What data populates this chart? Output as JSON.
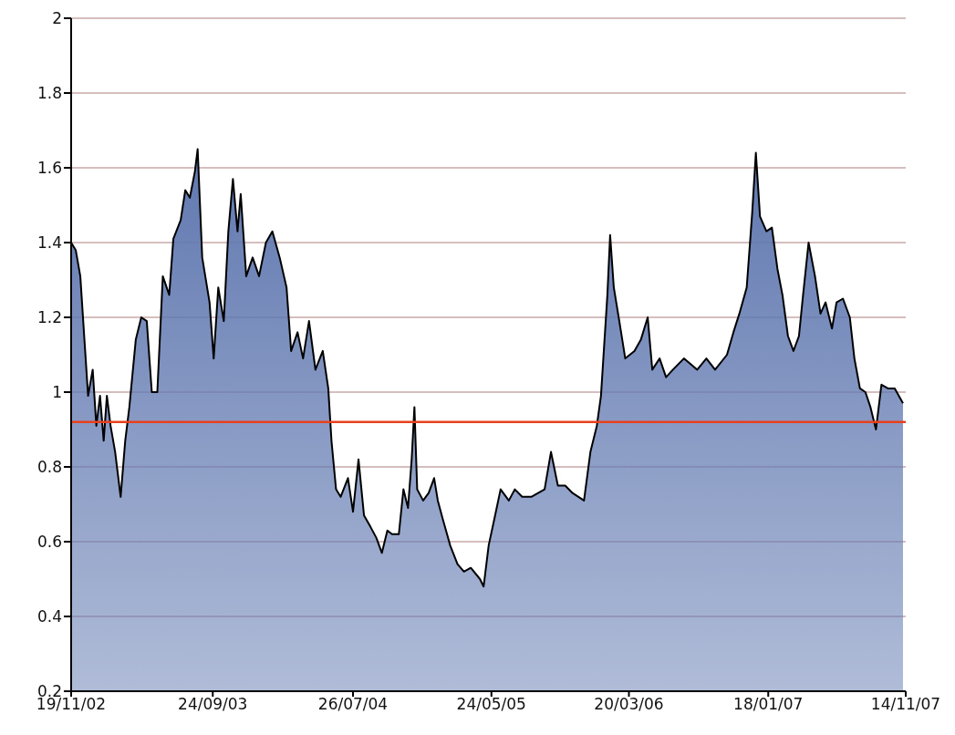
{
  "chart_data": {
    "type": "area",
    "x": [
      "2002-11-19",
      "2002-11-29",
      "2002-12-09",
      "2002-12-18",
      "2002-12-26",
      "2003-01-05",
      "2003-01-13",
      "2003-01-21",
      "2003-01-29",
      "2003-02-05",
      "2003-02-13",
      "2003-02-23",
      "2003-03-07",
      "2003-03-17",
      "2003-03-26",
      "2003-04-09",
      "2003-04-21",
      "2003-05-03",
      "2003-05-14",
      "2003-05-26",
      "2003-06-07",
      "2003-06-21",
      "2003-06-30",
      "2003-07-16",
      "2003-07-26",
      "2003-08-05",
      "2003-08-16",
      "2003-08-22",
      "2003-09-01",
      "2003-09-17",
      "2003-09-26",
      "2003-10-06",
      "2003-10-18",
      "2003-10-28",
      "2003-11-07",
      "2003-11-17",
      "2003-11-24",
      "2003-12-06",
      "2003-12-20",
      "2004-01-03",
      "2004-01-18",
      "2004-02-01",
      "2004-02-17",
      "2004-03-03",
      "2004-03-13",
      "2004-03-27",
      "2004-04-08",
      "2004-04-21",
      "2004-05-05",
      "2004-05-21",
      "2004-06-02",
      "2004-06-09",
      "2004-06-19",
      "2004-06-29",
      "2004-07-15",
      "2004-07-26",
      "2004-08-07",
      "2004-08-19",
      "2004-09-02",
      "2004-09-15",
      "2004-09-27",
      "2004-10-09",
      "2004-10-19",
      "2004-11-03",
      "2004-11-13",
      "2004-11-23",
      "2004-12-01",
      "2004-12-07",
      "2004-12-13",
      "2004-12-26",
      "2005-01-07",
      "2005-01-19",
      "2005-01-27",
      "2005-02-07",
      "2005-02-23",
      "2005-03-11",
      "2005-03-25",
      "2005-04-09",
      "2005-04-29",
      "2005-05-07",
      "2005-05-18",
      "2005-06-01",
      "2005-06-13",
      "2005-07-01",
      "2005-07-14",
      "2005-07-30",
      "2005-08-19",
      "2005-09-17",
      "2005-10-01",
      "2005-10-16",
      "2005-11-01",
      "2005-11-17",
      "2005-12-12",
      "2005-12-26",
      "2006-01-09",
      "2006-01-18",
      "2006-02-01",
      "2006-02-07",
      "2006-02-15",
      "2006-02-27",
      "2006-03-12",
      "2006-04-01",
      "2006-04-15",
      "2006-04-30",
      "2006-05-10",
      "2006-05-26",
      "2006-06-09",
      "2006-06-24",
      "2006-07-18",
      "2006-08-16",
      "2006-09-05",
      "2006-09-24",
      "2006-10-20",
      "2006-11-03",
      "2006-11-16",
      "2006-12-02",
      "2006-12-14",
      "2006-12-22",
      "2006-12-31",
      "2007-01-14",
      "2007-01-26",
      "2007-02-07",
      "2007-02-18",
      "2007-03-02",
      "2007-03-14",
      "2007-03-26",
      "2007-04-04",
      "2007-04-16",
      "2007-04-30",
      "2007-05-12",
      "2007-05-23",
      "2007-06-06",
      "2007-06-16",
      "2007-06-30",
      "2007-07-15",
      "2007-07-25",
      "2007-08-06",
      "2007-08-18",
      "2007-08-29",
      "2007-09-10",
      "2007-09-22",
      "2007-10-06",
      "2007-10-21",
      "2007-11-08"
    ],
    "series": [
      {
        "color": "#6078b0",
        "values": [
          1.4,
          1.38,
          1.31,
          1.14,
          0.99,
          1.06,
          0.91,
          0.99,
          0.87,
          0.99,
          0.91,
          0.84,
          0.72,
          0.87,
          0.96,
          1.14,
          1.2,
          1.19,
          1.0,
          1.0,
          1.31,
          1.26,
          1.41,
          1.46,
          1.54,
          1.52,
          1.59,
          1.65,
          1.36,
          1.24,
          1.09,
          1.28,
          1.19,
          1.43,
          1.57,
          1.43,
          1.53,
          1.31,
          1.36,
          1.31,
          1.4,
          1.43,
          1.36,
          1.28,
          1.11,
          1.16,
          1.09,
          1.19,
          1.06,
          1.11,
          1.01,
          0.87,
          0.74,
          0.72,
          0.77,
          0.68,
          0.82,
          0.67,
          0.64,
          0.61,
          0.57,
          0.63,
          0.62,
          0.62,
          0.74,
          0.69,
          0.82,
          0.96,
          0.74,
          0.71,
          0.73,
          0.77,
          0.71,
          0.66,
          0.59,
          0.54,
          0.52,
          0.53,
          0.5,
          0.48,
          0.59,
          0.67,
          0.74,
          0.71,
          0.74,
          0.72,
          0.72,
          0.74,
          0.84,
          0.75,
          0.75,
          0.73,
          0.71,
          0.84,
          0.91,
          0.99,
          1.26,
          1.42,
          1.28,
          1.19,
          1.09,
          1.11,
          1.14,
          1.2,
          1.06,
          1.09,
          1.04,
          1.06,
          1.09,
          1.06,
          1.09,
          1.06,
          1.1,
          1.16,
          1.21,
          1.28,
          1.48,
          1.64,
          1.47,
          1.43,
          1.44,
          1.33,
          1.26,
          1.15,
          1.11,
          1.15,
          1.26,
          1.4,
          1.31,
          1.21,
          1.24,
          1.17,
          1.24,
          1.25,
          1.2,
          1.09,
          1.01,
          1.0,
          0.96,
          0.9,
          1.02,
          1.01,
          1.01,
          0.97
        ]
      }
    ],
    "xlim": [
      "2002-11-19",
      "2007-11-14"
    ],
    "xticks": [
      {
        "value": "2002-11-19",
        "label": "19/11/02"
      },
      {
        "value": "2003-09-24",
        "label": "24/09/03"
      },
      {
        "value": "2004-07-26",
        "label": "26/07/04"
      },
      {
        "value": "2005-05-24",
        "label": "24/05/05"
      },
      {
        "value": "2006-03-20",
        "label": "20/03/06"
      },
      {
        "value": "2007-01-18",
        "label": "18/01/07"
      },
      {
        "value": "2007-11-14",
        "label": "14/11/07"
      }
    ],
    "ylim": [
      0.2,
      2
    ],
    "yticks": [
      0.2,
      0.4,
      0.6,
      0.8,
      1,
      1.2,
      1.4,
      1.6,
      1.8,
      2
    ],
    "ref_lines": [
      {
        "axis": "y",
        "value": 0.92,
        "color": "#e8401c"
      }
    ],
    "grid": "y"
  }
}
